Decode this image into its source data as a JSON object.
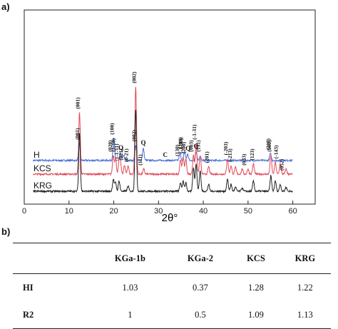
{
  "panel_labels": {
    "a": "a)",
    "b": "b)"
  },
  "chart_data": {
    "type": "line",
    "title": "",
    "xlabel": "2θ°",
    "ylabel": "",
    "xlim": [
      0,
      65
    ],
    "x_ticks": [
      0,
      10,
      20,
      30,
      40,
      50,
      60
    ],
    "grid": false,
    "series": [
      {
        "name": "H",
        "color": "#4a6fd8",
        "baseline": 0.9,
        "peaks": [
          [
            12.3,
            0.5
          ],
          [
            20.0,
            0.65
          ],
          [
            21.5,
            0.2
          ],
          [
            22.2,
            0.15
          ],
          [
            24.9,
            0.45
          ],
          [
            26.6,
            0.35
          ],
          [
            34.8,
            0.22
          ],
          [
            35.8,
            0.25
          ],
          [
            36.5,
            0.18
          ],
          [
            38.4,
            0.25
          ],
          [
            39.3,
            0.12
          ],
          [
            55.0,
            0.2
          ]
        ],
        "annotations": [
          {
            "x": 12.3,
            "text": "(001)"
          },
          {
            "x": 20.0,
            "text": "(100)"
          },
          {
            "x": 21.6,
            "text": "Q"
          },
          {
            "x": 24.9,
            "text": "(002)"
          },
          {
            "x": 26.6,
            "text": "Q"
          },
          {
            "x": 31.5,
            "text": "C"
          },
          {
            "x": 35.3,
            "text": "(110)"
          },
          {
            "x": 36.6,
            "text": "Q"
          },
          {
            "x": 38.4,
            "text": "Q"
          },
          {
            "x": 54.9,
            "text": "(210)"
          }
        ]
      },
      {
        "name": "KCS",
        "color": "#e24a5a",
        "baseline": 0.5,
        "peaks": [
          [
            12.35,
            1.8
          ],
          [
            19.9,
            0.55
          ],
          [
            20.4,
            0.45
          ],
          [
            21.2,
            0.35
          ],
          [
            21.5,
            0.3
          ],
          [
            22.4,
            0.25
          ],
          [
            23.2,
            0.25
          ],
          [
            24.9,
            2.55
          ],
          [
            26.7,
            0.15
          ],
          [
            34.9,
            0.42
          ],
          [
            35.5,
            0.5
          ],
          [
            36.1,
            0.45
          ],
          [
            37.8,
            0.55
          ],
          [
            38.4,
            0.9
          ],
          [
            39.3,
            0.55
          ],
          [
            41.2,
            0.22
          ],
          [
            45.4,
            0.45
          ],
          [
            46.2,
            0.25
          ],
          [
            47.2,
            0.2
          ],
          [
            48.7,
            0.15
          ],
          [
            50.0,
            0.15
          ],
          [
            51.2,
            0.3
          ],
          [
            55.1,
            0.55
          ],
          [
            56.1,
            0.35
          ],
          [
            57.2,
            0.3
          ],
          [
            58.5,
            0.15
          ]
        ],
        "annotations": [
          {
            "x": 19.6,
            "text": "(020)"
          },
          {
            "x": 20.3,
            "text": "(1-10)"
          },
          {
            "x": 21.0,
            "text": "(-1-11)"
          },
          {
            "x": 22.0,
            "text": "(021)"
          },
          {
            "x": 23.2,
            "text": "(0-21)"
          },
          {
            "x": 12.35,
            "text": "(001)"
          },
          {
            "x": 24.9,
            "text": "(002)"
          },
          {
            "x": 26.3,
            "text": "(111)"
          },
          {
            "x": 34.6,
            "text": "(130)"
          },
          {
            "x": 35.4,
            "text": "(-1-30)"
          },
          {
            "x": 36.0,
            "text": "(200)"
          },
          {
            "x": 37.7,
            "text": "(003)"
          },
          {
            "x": 38.4,
            "text": "(-1-31)"
          },
          {
            "x": 39.3,
            "text": "(131)"
          },
          {
            "x": 41.2,
            "text": "(201)"
          },
          {
            "x": 45.4,
            "text": "(-203)"
          },
          {
            "x": 46.4,
            "text": "(-213)"
          },
          {
            "x": 49.5,
            "text": "(033)"
          },
          {
            "x": 51.3,
            "text": "(123)"
          },
          {
            "x": 55.1,
            "text": "(300)"
          },
          {
            "x": 56.6,
            "text": "(-143)"
          },
          {
            "x": 57.9,
            "text": "(052)"
          }
        ]
      },
      {
        "name": "KRG",
        "color": "#222222",
        "baseline": 0.0,
        "peaks": [
          [
            12.35,
            1.7
          ],
          [
            19.9,
            0.35
          ],
          [
            20.4,
            0.25
          ],
          [
            21.2,
            0.3
          ],
          [
            23.2,
            0.15
          ],
          [
            24.9,
            2.4
          ],
          [
            34.9,
            0.25
          ],
          [
            35.5,
            0.3
          ],
          [
            36.1,
            0.25
          ],
          [
            37.8,
            0.7
          ],
          [
            38.4,
            0.8
          ],
          [
            39.3,
            0.6
          ],
          [
            41.2,
            0.2
          ],
          [
            45.4,
            0.35
          ],
          [
            46.2,
            0.2
          ],
          [
            47.2,
            0.12
          ],
          [
            48.7,
            0.1
          ],
          [
            51.2,
            0.3
          ],
          [
            55.1,
            0.45
          ],
          [
            56.1,
            0.3
          ],
          [
            57.2,
            0.2
          ],
          [
            58.5,
            0.12
          ]
        ],
        "annotations": []
      }
    ]
  },
  "table": {
    "columns": [
      "",
      "KGa-1b",
      "KGa-2",
      "KCS",
      "KRG"
    ],
    "rows": [
      {
        "label": "HI",
        "values": [
          "1.03",
          "0.37",
          "1.28",
          "1.22"
        ]
      },
      {
        "label": "R2",
        "values": [
          "1",
          "0.5",
          "1.09",
          "1.13"
        ]
      }
    ]
  }
}
